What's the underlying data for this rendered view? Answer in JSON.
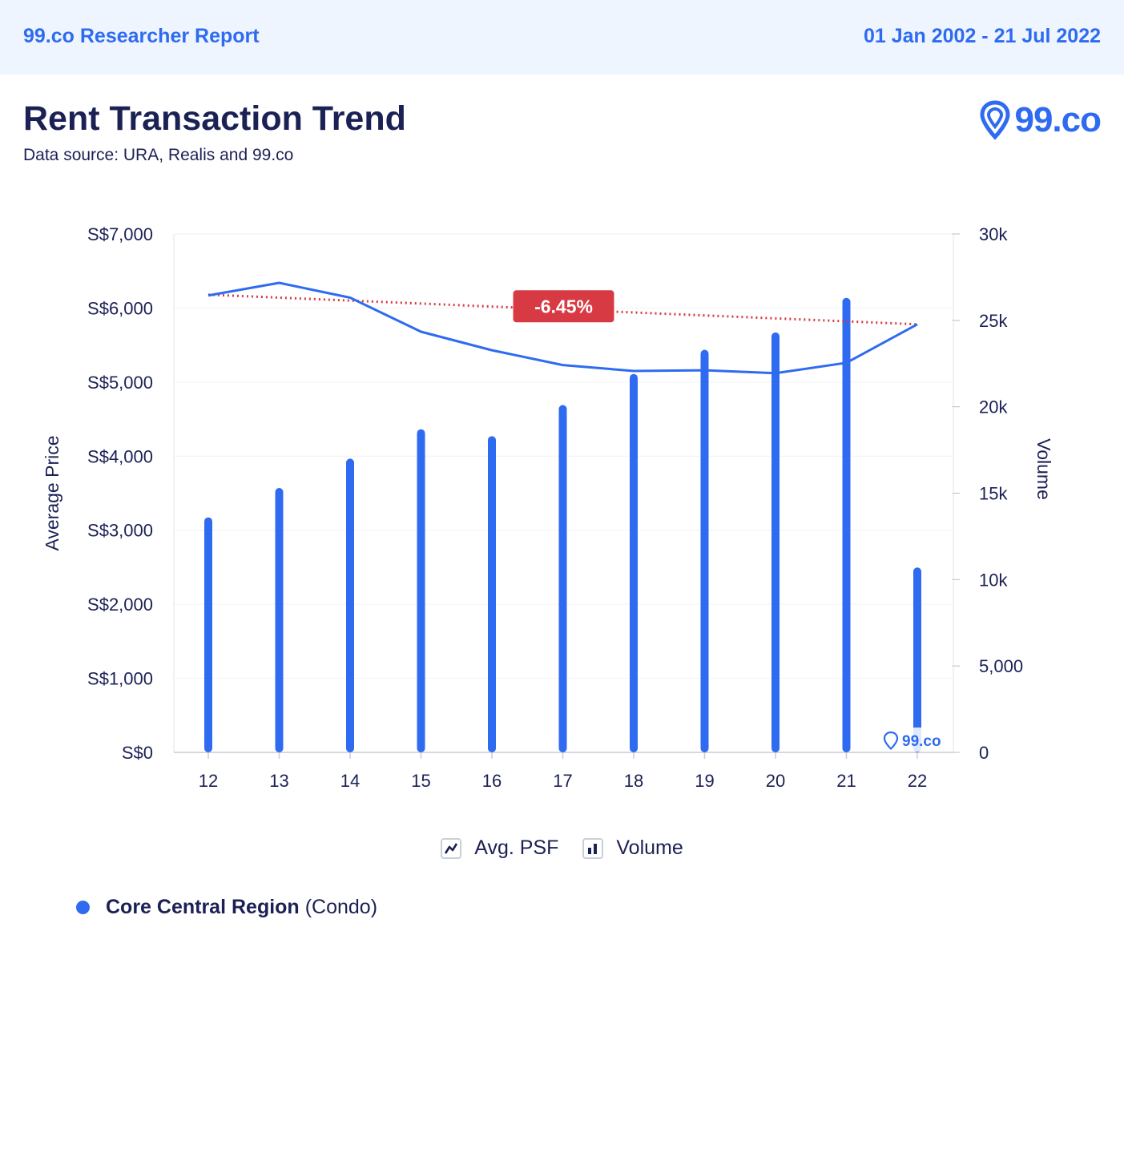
{
  "header": {
    "report_label": "99.co Researcher Report",
    "date_range": "01 Jan 2002 - 21 Jul 2022"
  },
  "title": "Rent Transaction Trend",
  "subtitle": "Data source: URA, Realis and 99.co",
  "brand": {
    "text": "99.co",
    "watermark_text": "99.co",
    "color": "#2f6bf0"
  },
  "legend": {
    "line_label": "Avg. PSF",
    "bar_label": "Volume"
  },
  "region": {
    "name": "Core Central Region",
    "type": "(Condo)",
    "color": "#2f6bf0"
  },
  "chart_data": {
    "type": "bar",
    "categories": [
      "12",
      "13",
      "14",
      "15",
      "16",
      "17",
      "18",
      "19",
      "20",
      "21",
      "22"
    ],
    "series": [
      {
        "name": "Volume",
        "kind": "bar",
        "axis": "right",
        "values": [
          13600,
          15300,
          17000,
          18700,
          18300,
          20100,
          21900,
          23300,
          24300,
          26300,
          10700
        ]
      },
      {
        "name": "Avg. PSF",
        "kind": "line",
        "axis": "left",
        "values": [
          6170,
          6340,
          6140,
          5680,
          5430,
          5230,
          5150,
          5160,
          5120,
          5260,
          5780
        ]
      }
    ],
    "trendline": {
      "start": 6180,
      "end": 5780,
      "label": "-6.45%",
      "color": "#d83a44"
    },
    "ylabel": "Average Price",
    "y2label": "Volume",
    "ylim": [
      0,
      7000
    ],
    "y2lim": [
      0,
      30000
    ],
    "yticks": [
      "S$0",
      "S$1,000",
      "S$2,000",
      "S$3,000",
      "S$4,000",
      "S$5,000",
      "S$6,000",
      "S$7,000"
    ],
    "y2ticks": [
      "0",
      "5,000",
      "10k",
      "15k",
      "20k",
      "25k",
      "30k"
    ],
    "colors": {
      "bar": "#2f6bf0",
      "line": "#2f6bf0",
      "text": "#1b2155"
    }
  }
}
